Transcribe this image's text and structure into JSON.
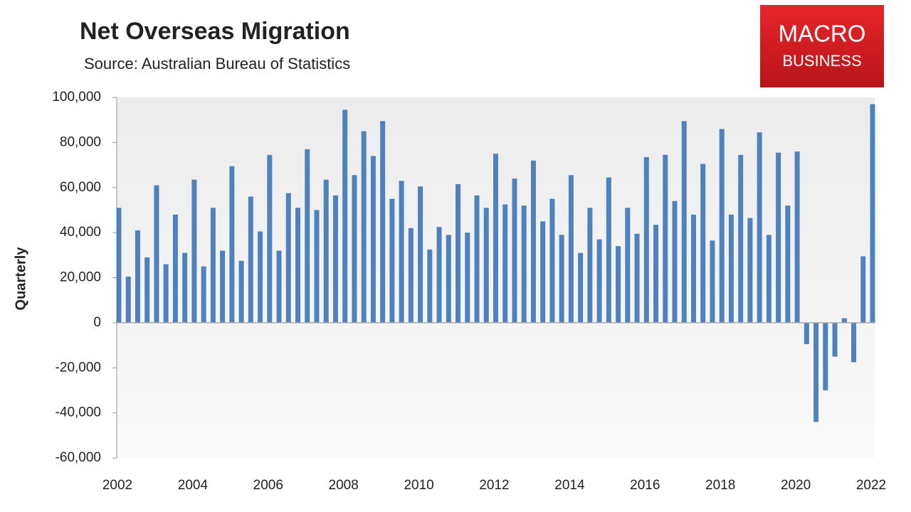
{
  "logo": {
    "line1": "MACRO",
    "line2": "BUSINESS"
  },
  "chart_data": {
    "type": "bar",
    "title": "Net Overseas Migration",
    "subtitle": "Source: Australian Bureau of Statistics",
    "y_label": "Quarterly",
    "color": "#4f81bd",
    "categories": [
      "2002",
      null,
      null,
      null,
      null,
      null,
      null,
      null,
      "2004",
      null,
      null,
      null,
      null,
      null,
      null,
      null,
      "2006",
      null,
      null,
      null,
      null,
      null,
      null,
      null,
      "2008",
      null,
      null,
      null,
      null,
      null,
      null,
      null,
      "2010",
      null,
      null,
      null,
      null,
      null,
      null,
      null,
      "2012",
      null,
      null,
      null,
      null,
      null,
      null,
      null,
      "2014",
      null,
      null,
      null,
      null,
      null,
      null,
      null,
      "2016",
      null,
      null,
      null,
      null,
      null,
      null,
      null,
      "2018",
      null,
      null,
      null,
      null,
      null,
      null,
      null,
      "2020",
      null,
      null,
      null,
      null,
      null,
      null,
      null,
      "2022"
    ],
    "values": [
      51000,
      20500,
      41000,
      29000,
      61000,
      26000,
      48000,
      31000,
      63500,
      25000,
      51000,
      32000,
      69500,
      27500,
      56000,
      40500,
      74500,
      32000,
      57500,
      51000,
      77000,
      50000,
      63500,
      56500,
      94500,
      65500,
      85000,
      74000,
      89500,
      55000,
      63000,
      42000,
      60500,
      32500,
      42500,
      39000,
      61500,
      40000,
      56500,
      51000,
      75000,
      52500,
      64000,
      52000,
      72000,
      45000,
      55000,
      39000,
      65500,
      31000,
      51000,
      37000,
      64500,
      34000,
      51000,
      39500,
      73500,
      43500,
      74500,
      54000,
      89500,
      48000,
      70500,
      36500,
      86000,
      48000,
      74500,
      46500,
      84500,
      39000,
      75500,
      52000,
      76000,
      -9500,
      -44000,
      -30000,
      -15000,
      2000,
      -17500,
      29500,
      97000
    ],
    "ylim": [
      -60000,
      100000
    ],
    "yticks": [
      {
        "value": -60000,
        "label": "-60,000"
      },
      {
        "value": -40000,
        "label": "-40,000"
      },
      {
        "value": -20000,
        "label": "-20,000"
      },
      0,
      {
        "value": 20000,
        "label": "20,000"
      },
      {
        "value": 40000,
        "label": "40,000"
      },
      {
        "value": 60000,
        "label": "60,000"
      },
      {
        "value": 80000,
        "label": "80,000"
      },
      {
        "value": 100000,
        "label": "100,000"
      }
    ]
  }
}
